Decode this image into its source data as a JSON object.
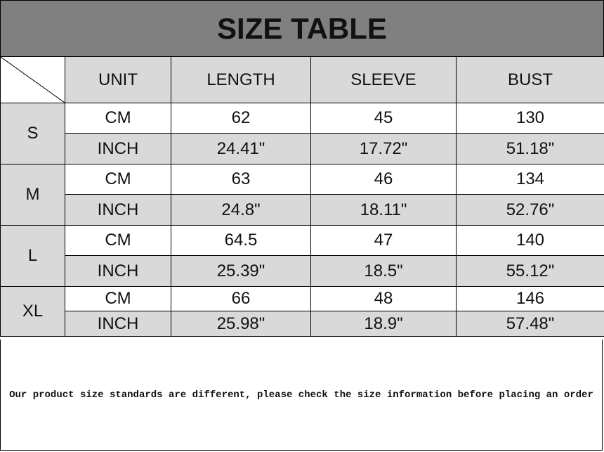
{
  "title": "SIZE TABLE",
  "headers": [
    "UNIT",
    "LENGTH",
    "SLEEVE",
    "BUST"
  ],
  "sizes": [
    {
      "size": "S",
      "rows": [
        [
          "CM",
          "62",
          "45",
          "130"
        ],
        [
          "INCH",
          "24.41\"",
          "17.72\"",
          "51.18\""
        ]
      ]
    },
    {
      "size": "M",
      "rows": [
        [
          "CM",
          "63",
          "46",
          "134"
        ],
        [
          "INCH",
          "24.8\"",
          "18.11\"",
          "52.76\""
        ]
      ]
    },
    {
      "size": "L",
      "rows": [
        [
          "CM",
          "64.5",
          "47",
          "140"
        ],
        [
          "INCH",
          "25.39\"",
          "18.5\"",
          "55.12\""
        ]
      ]
    },
    {
      "size": "XL",
      "rows": [
        [
          "CM",
          "66",
          "48",
          "146"
        ],
        [
          "INCH",
          "25.98\"",
          "18.9\"",
          "57.48\""
        ]
      ]
    }
  ],
  "note": "Our product size standards are different, please check the size information before placing an order",
  "colors": {
    "title_bg": "#808080",
    "shaded_cell": "#d9d9d9"
  }
}
